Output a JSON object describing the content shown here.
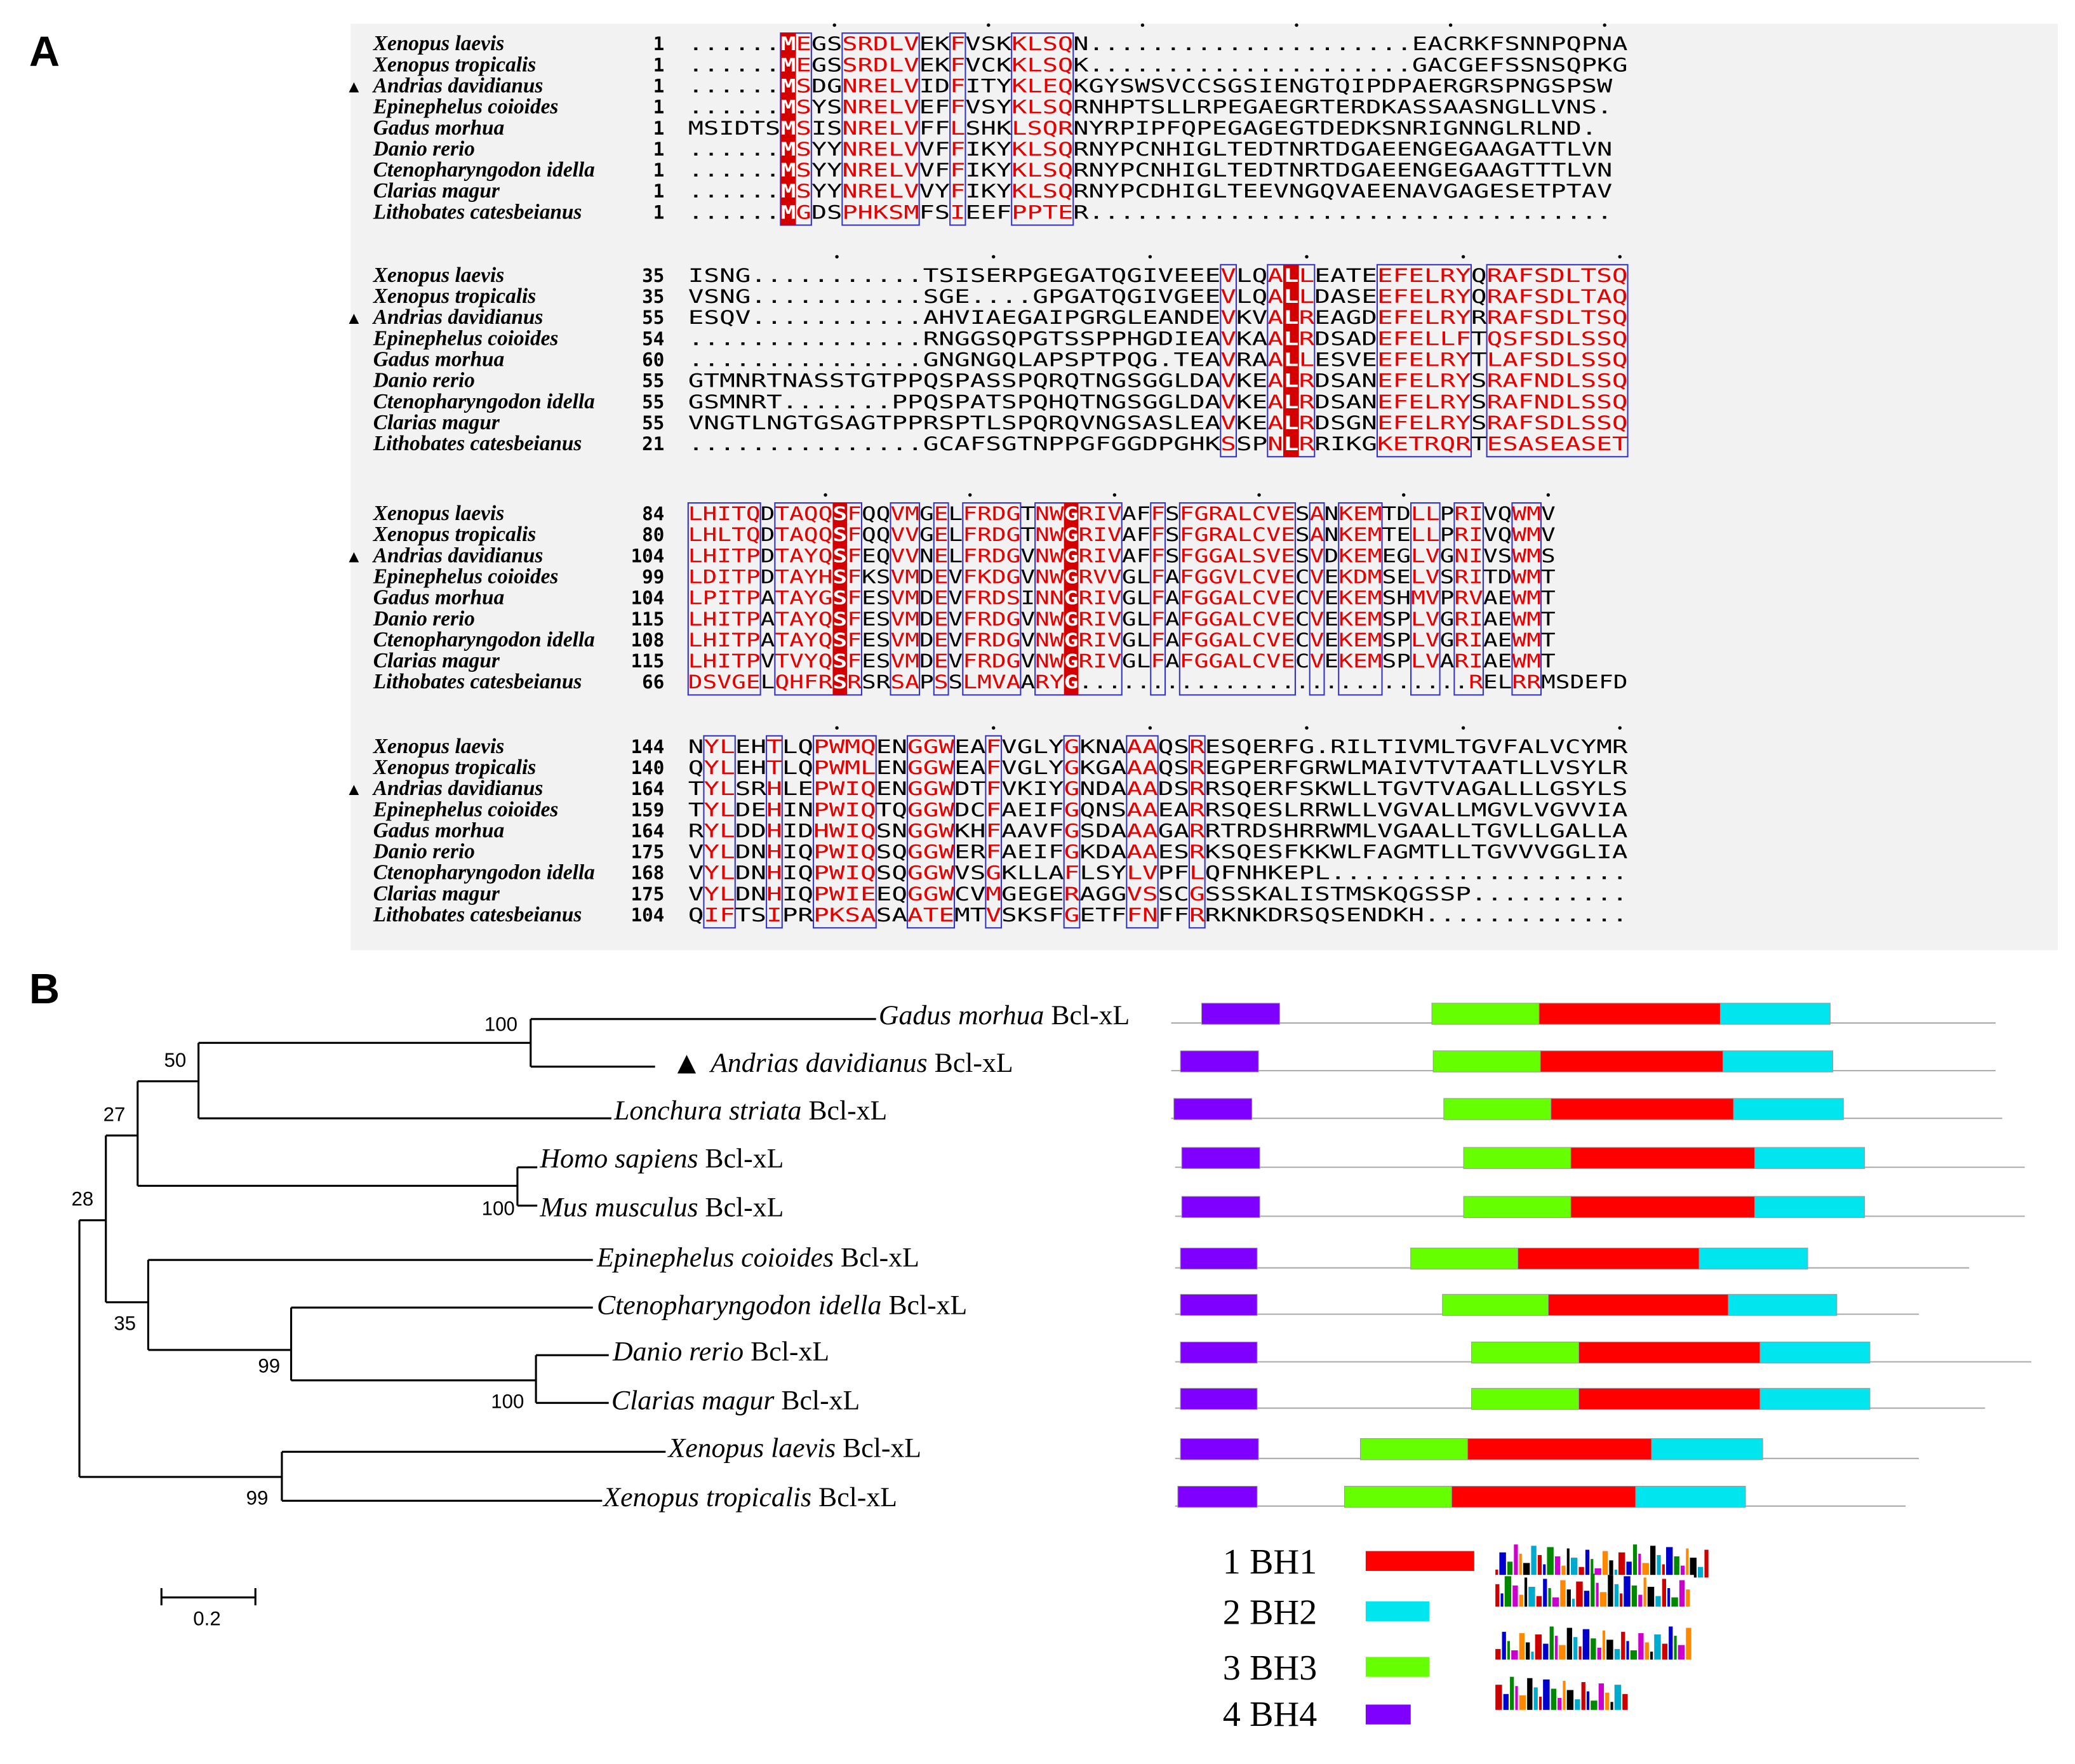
{
  "panel_labels": {
    "a": "A",
    "b": "B"
  },
  "alignment": {
    "blocks": [
      {
        "rows": [
          {
            "species": "Xenopus laevis",
            "marker": "",
            "start": "1",
            "seq": "......MEGSSRDLVEKFVSKKLSQN.....................EACRKFSNNPQPNA"
          },
          {
            "species": "Xenopus tropicalis",
            "marker": "",
            "start": "1",
            "seq": "......MEGSSRDLVEKFVCKKLSQK.....................GACGEFSSNSQPKG"
          },
          {
            "species": "Andrias davidianus",
            "marker": "▲",
            "start": "1",
            "seq": "......MSDGNRELVIDFITYKLEQKGYSWSVCCSGSIENGTQIPDPAERGRSPNGSPSW"
          },
          {
            "species": "Epinephelus coioides",
            "marker": "",
            "start": "1",
            "seq": "......MSYSNRELVEFFVSYKLSQRNHPTSLLRPEGAEGRTERDKASSAASNGLLVNS."
          },
          {
            "species": "Gadus morhua",
            "marker": "",
            "start": "1",
            "seq": "MSIDTSMSISNRELVFFLSHKLSQRNYRPIPFQPEGAGEGTDEDKSNRIGNNGLRLND."
          },
          {
            "species": "Danio rerio",
            "marker": "",
            "start": "1",
            "seq": "......MSYYNRELVVFFIKYKLSQRNYPCNHIGLTEDTNRTDGAEENGEGAAGATTLVN"
          },
          {
            "species": "Ctenopharyngodon idella",
            "marker": "",
            "start": "1",
            "seq": "......MSYYNRELVVFFIKYKLSQRNYPCNHIGLTEDTNRTDGAEENGEGAAGTTTLVN"
          },
          {
            "species": "Clarias magur",
            "marker": "",
            "start": "1",
            "seq": "......MSYYNRELVVYFIKYKLSQRNYPCDHIGLTEEVNGQVAEENAVGAGESETPTAV"
          },
          {
            "species": "Lithobates catesbeianus",
            "marker": "",
            "start": "1",
            "seq": "......MGDSPHKSMFSIEEFPPTER.................................."
          }
        ]
      },
      {
        "rows": [
          {
            "species": "Xenopus laevis",
            "marker": "",
            "start": "35",
            "seq": "ISNG...........TSISERPGEGATQGIVEEEVLQALLEATEEFELRYQRAFSDLTSQ"
          },
          {
            "species": "Xenopus tropicalis",
            "marker": "",
            "start": "35",
            "seq": "VSNG...........SGE....GPGATQGIVGEEVLQALLDASEEFELRYQRAFSDLTAQ"
          },
          {
            "species": "Andrias davidianus",
            "marker": "▲",
            "start": "55",
            "seq": "ESQV...........AHVIAEGAIPGRGLEANDEVKVALREAGDEFELRYRRAFSDLTSQ"
          },
          {
            "species": "Epinephelus coioides",
            "marker": "",
            "start": "54",
            "seq": "...............RNGGSQPGTSSPPHGDIEAVKAALRDSADEFELLFTQSFSDLSSQ"
          },
          {
            "species": "Gadus morhua",
            "marker": "",
            "start": "60",
            "seq": "...............GNGNGQLAPSPTPQG.TEAVRAALLESVEEFELRYTLAFSDLSSQ"
          },
          {
            "species": "Danio rerio",
            "marker": "",
            "start": "55",
            "seq": "GTMNRTNASSTGTPPQSPASSPQRQTNGSGGLDAVKEALRDSANEFELRYSRAFNDLSSQ"
          },
          {
            "species": "Ctenopharyngodon idella",
            "marker": "",
            "start": "55",
            "seq": "GSMNRT.......PPQSPATSPQHQTNGSGGLDAVKEALRDSANEFELRYSRAFNDLSSQ"
          },
          {
            "species": "Clarias magur",
            "marker": "",
            "start": "55",
            "seq": "VNGTLNGTGSAGTPPRSPTLSPQRQVNGSASLEAVKEALRDSGNEFELRYSRAFSDLSSQ"
          },
          {
            "species": "Lithobates catesbeianus",
            "marker": "",
            "start": "21",
            "seq": "...............GCAFSGTNPPGFGGDPGHKSSPNLRRIKGKETRQRTESASEASET"
          }
        ]
      },
      {
        "rows": [
          {
            "species": "Xenopus laevis",
            "marker": "",
            "start": "84",
            "seq": "LHITQDTAQQSFQQVMGELFRDGTNWGRIVAFFSFGRALCVESANKEMTDLLPRIVQWMV"
          },
          {
            "species": "Xenopus tropicalis",
            "marker": "",
            "start": "80",
            "seq": "LHLTQDTAQQSFQQVVGELFRDGTNWGRIVAFFSFGRALCVESANKEMTELLPRIVQWMV"
          },
          {
            "species": "Andrias davidianus",
            "marker": "▲",
            "start": "104",
            "seq": "LHITPDTAYQSFEQVVNELFRDGVNWGRIVAFFSFGGALSVESVDKEMEGLVGNIVSWMS"
          },
          {
            "species": "Epinephelus coioides",
            "marker": "",
            "start": "99",
            "seq": "LDITPDTAYHSFKSVMDEVFKDGVNWGRVVGLFAFGGVLCVECVEKDMSELVSRITDWMT"
          },
          {
            "species": "Gadus morhua",
            "marker": "",
            "start": "104",
            "seq": "LPITPATAYGSFESVMDEVFRDSINNGRIVGLFAFGGALCVECVEKEMSHMVPRVAEWMT"
          },
          {
            "species": "Danio rerio",
            "marker": "",
            "start": "115",
            "seq": "LHITPATAYQSFESVMDEVFRDGVNWGRIVGLFAFGGALCVECVEKEMSPLVGRIAEWMT"
          },
          {
            "species": "Ctenopharyngodon idella",
            "marker": "",
            "start": "108",
            "seq": "LHITPATAYQSFESVMDEVFRDGVNWGRIVGLFAFGGALCVECVEKEMSPLVGRIAEWMT"
          },
          {
            "species": "Clarias magur",
            "marker": "",
            "start": "115",
            "seq": "LHITPVTVYQSFESVMDEVFRDGVNWGRIVGLFAFGGALCVECVEKEMSPLVARIAEWMT"
          },
          {
            "species": "Lithobates catesbeianus",
            "marker": "",
            "start": "66",
            "seq": "DSVGELQHFRSRSRSAPSSLMVAARYG...........................RELRRMSDEFD"
          }
        ]
      },
      {
        "rows": [
          {
            "species": "Xenopus laevis",
            "marker": "",
            "start": "144",
            "seq": "NYLEHTLQPWMQENGGWEAFVGLYGKNAAAQSRESQERFG.RILTIVMLTGVFALVCYMR"
          },
          {
            "species": "Xenopus tropicalis",
            "marker": "",
            "start": "140",
            "seq": "QYLEHTLQPWMLENGGWEAFVGLYGKGAAAQSREGPERFGRWLMAIVTVTAATLLVSYLR"
          },
          {
            "species": "Andrias davidianus",
            "marker": "▲",
            "start": "164",
            "seq": "TYLSRHLEPWIQENGGWDTFVKIYGNDAAADSRRSQERFSKWLLTGVTVAGALLLGSYLS"
          },
          {
            "species": "Epinephelus coioides",
            "marker": "",
            "start": "159",
            "seq": "TYLDEHINPWIQTQGGWDCFAEIFGQNSAAEARRSQESLRRWLLVGVALLMGVLVGVVIA"
          },
          {
            "species": "Gadus morhua",
            "marker": "",
            "start": "164",
            "seq": "RYLDDHIDHWIQSNGGWKHFAAVFGSDAAAGARRTRDSHRRWMLVGAALLTGVLLGALLA"
          },
          {
            "species": "Danio rerio",
            "marker": "",
            "start": "175",
            "seq": "VYLDNHIQPWIQSQGGWERFAEIFGKDAAAESRKSQESFKKWLFAGMTLLTGVVVGGLIA"
          },
          {
            "species": "Ctenopharyngodon idella",
            "marker": "",
            "start": "168",
            "seq": "VYLDNHIQPWIQSQGGWVSGKLLAFLSYLVPFLQFNHKEPL..................."
          },
          {
            "species": "Clarias magur",
            "marker": "",
            "start": "175",
            "seq": "VYLDNHIQPWIEEQGGWCVMGEGERAGGVSSCGSSSKALISTMSKQGSSP.........."
          },
          {
            "species": "Lithobates catesbeianus",
            "marker": "",
            "start": "104",
            "seq": "QIFTSIPRPKSASAATEMTVSKSFGETFFNFFRRKNKDRSQSENDKH............."
          }
        ]
      }
    ]
  },
  "tree": {
    "tips": [
      {
        "species": "Gadus morhua",
        "suffix": " Bcl-xL",
        "marker": ""
      },
      {
        "species": "Andrias davidianus",
        "suffix": " Bcl-xL",
        "marker": "▲"
      },
      {
        "species": "Lonchura striata",
        "suffix": " Bcl-xL",
        "marker": ""
      },
      {
        "species": "Homo sapiens",
        "suffix": " Bcl-xL",
        "marker": ""
      },
      {
        "species": "Mus musculus",
        "suffix": " Bcl-xL",
        "marker": ""
      },
      {
        "species": "Epinephelus coioides",
        "suffix": " Bcl-xL",
        "marker": ""
      },
      {
        "species": "Ctenopharyngodon idella",
        "suffix": " Bcl-xL",
        "marker": ""
      },
      {
        "species": "Danio rerio",
        "suffix": " Bcl-xL",
        "marker": ""
      },
      {
        "species": "Clarias magur",
        "suffix": " Bcl-xL",
        "marker": ""
      },
      {
        "species": "Xenopus laevis",
        "suffix": " Bcl-xL",
        "marker": ""
      },
      {
        "species": "Xenopus tropicalis",
        "suffix": " Bcl-xL",
        "marker": ""
      }
    ],
    "bootstrap": {
      "gadus_andrias": "100",
      "fish_lonchura": "50",
      "with_mammals": "27",
      "ingroup": "28",
      "mammals": "100",
      "fish_clade": "35",
      "cyprinid_clade": "99",
      "danio_clarias": "100",
      "xenopus": "99"
    },
    "scale_label": "0.2"
  },
  "domains": {
    "legend": [
      {
        "label": "1 BH1",
        "color": "#ff0000"
      },
      {
        "label": "2 BH2",
        "color": "#00e5ee"
      },
      {
        "label": "3 BH3",
        "color": "#66ff00"
      },
      {
        "label": "4 BH4",
        "color": "#8000ff"
      }
    ]
  },
  "colors": {
    "conserved_bg": "#d40000",
    "similar_text": "#e60000",
    "box_border": "#3333cc"
  }
}
